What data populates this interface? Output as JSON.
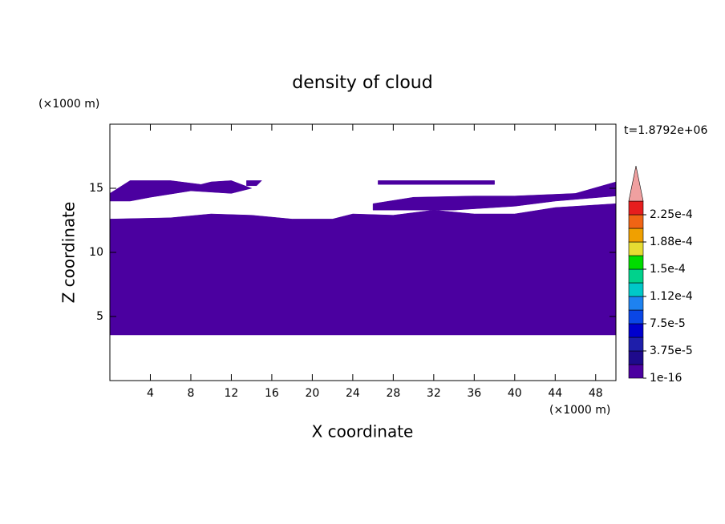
{
  "chart_data": {
    "type": "contour",
    "title": "density of cloud",
    "time_label": "t=1.8792e+06",
    "x_label": "X coordinate",
    "y_label": "Z coordinate",
    "x_unit": "(×1000 m)",
    "y_unit": "(×1000 m)",
    "xlim": [
      0,
      50
    ],
    "ylim": [
      0,
      20
    ],
    "xticks": [
      4,
      8,
      12,
      16,
      20,
      24,
      28,
      32,
      36,
      40,
      44,
      48
    ],
    "yticks": [
      5,
      10,
      15
    ],
    "regions": [
      {
        "color": "#4b00a0",
        "x": [
          0,
          50,
          50,
          44,
          40,
          36,
          32,
          28,
          24,
          22,
          18,
          14,
          10,
          6,
          0
        ],
        "y": [
          3.56,
          3.56,
          13.8,
          13.5,
          13.0,
          13.0,
          13.3,
          12.9,
          13.0,
          12.6,
          12.6,
          12.9,
          13.0,
          12.7,
          12.6
        ]
      },
      {
        "color": "#4b00a0",
        "x": [
          0,
          2,
          6,
          9,
          10,
          12,
          14,
          12,
          8,
          4,
          2,
          0
        ],
        "y": [
          14.6,
          15.6,
          15.6,
          15.3,
          15.5,
          15.6,
          15.0,
          14.6,
          14.8,
          14.3,
          14.0,
          14.0
        ]
      },
      {
        "color": "#4b00a0",
        "x": [
          13.5,
          15,
          14.5,
          13.5
        ],
        "y": [
          15.6,
          15.6,
          15.2,
          15.2
        ]
      },
      {
        "color": "#4b00a0",
        "x": [
          26.5,
          38,
          38,
          26.5
        ],
        "y": [
          15.6,
          15.6,
          15.3,
          15.3
        ]
      },
      {
        "color": "#4b00a0",
        "x": [
          26,
          30,
          36,
          40,
          46,
          50,
          50,
          44,
          40,
          34,
          30,
          26
        ],
        "y": [
          13.8,
          14.3,
          14.4,
          14.4,
          14.6,
          15.5,
          14.4,
          14.0,
          13.6,
          13.3,
          13.3,
          13.3
        ]
      }
    ],
    "colorbar": {
      "lim": [
        1e-16,
        0.00024375
      ],
      "colors": [
        "#4b00a0",
        "#1e0a8c",
        "#1e1eaa",
        "#0000cd",
        "#0a46e6",
        "#1e82f0",
        "#00c8c8",
        "#00d28c",
        "#00dc00",
        "#e6dc32",
        "#f0a000",
        "#f06414",
        "#e61e1e",
        "#f0a0a0"
      ],
      "ticks": [
        {
          "value": 1e-16,
          "label": "1e-16"
        },
        {
          "value": 3.75e-05,
          "label": "3.75e-5"
        },
        {
          "value": 7.5e-05,
          "label": "7.5e-5"
        },
        {
          "value": 0.0001125,
          "label": "1.12e-4"
        },
        {
          "value": 0.00015,
          "label": "1.5e-4"
        },
        {
          "value": 0.0001875,
          "label": "1.88e-4"
        },
        {
          "value": 0.000225,
          "label": "2.25e-4"
        }
      ]
    }
  }
}
